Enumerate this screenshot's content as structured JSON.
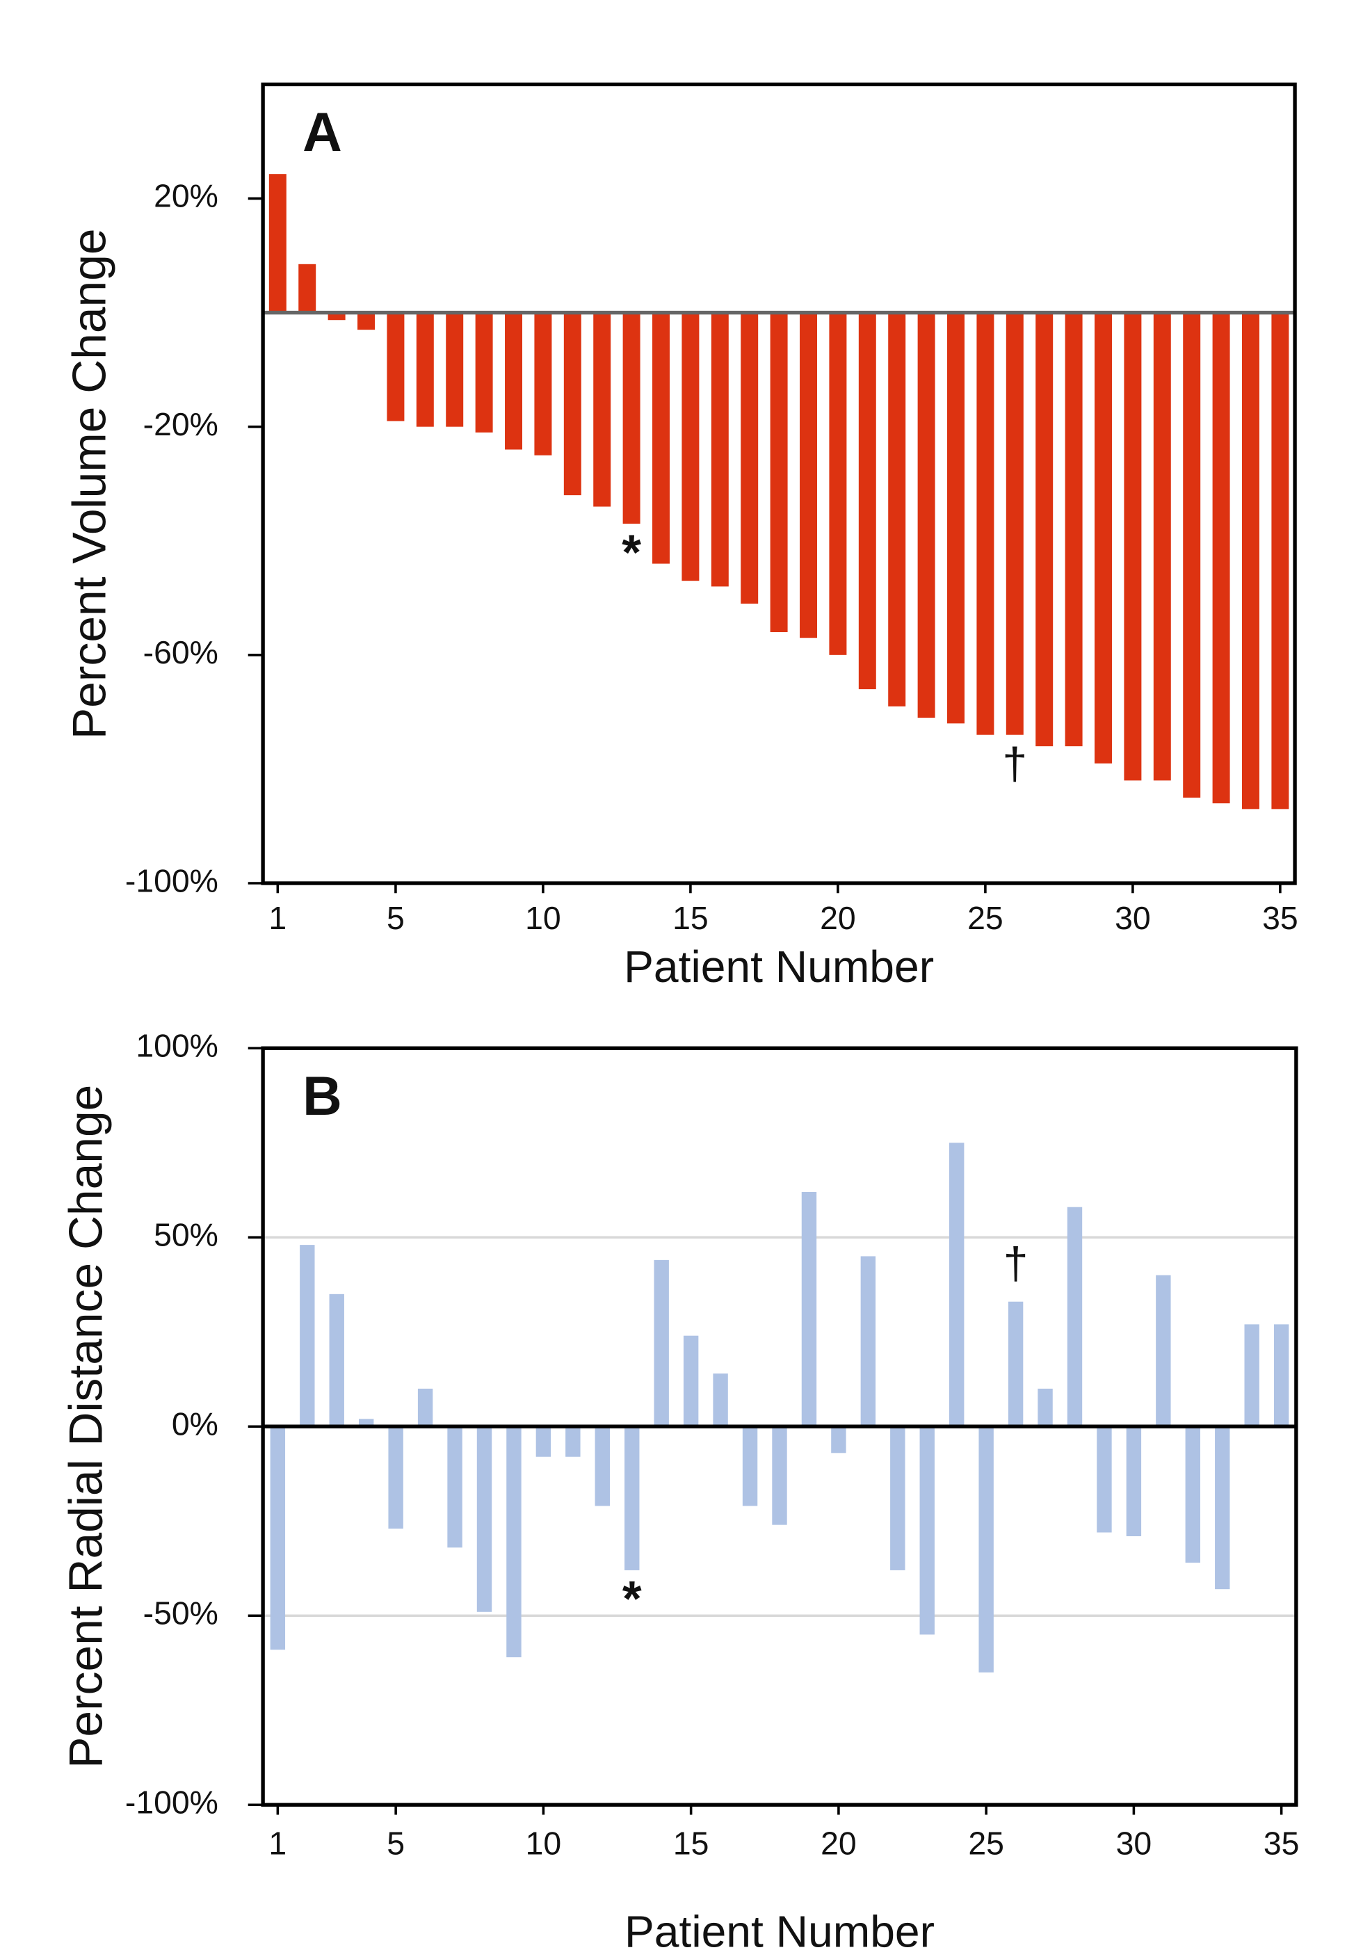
{
  "chart_data": [
    {
      "type": "bar",
      "panel_label": "A",
      "xlabel": "Patient Number",
      "ylabel": "Percent Volume Change",
      "x": [
        1,
        2,
        3,
        4,
        5,
        6,
        7,
        8,
        9,
        10,
        11,
        12,
        13,
        14,
        15,
        16,
        17,
        18,
        19,
        20,
        21,
        22,
        23,
        24,
        25,
        26,
        27,
        28,
        29,
        30,
        31,
        32,
        33,
        34,
        35
      ],
      "values": [
        24.3,
        8.5,
        -1.3,
        -3,
        -19,
        -20,
        -20,
        -21,
        -24,
        -25,
        -32,
        -34,
        -37,
        -44,
        -47,
        -48,
        -51,
        -56,
        -57,
        -60,
        -66,
        -69,
        -71,
        -72,
        -74,
        -74,
        -76,
        -76,
        -79,
        -82,
        -82,
        -85,
        -86,
        -87,
        -87
      ],
      "color": "#dd3311",
      "xlim": [
        0.5,
        35.5
      ],
      "ylim": [
        -100,
        40
      ],
      "xticks": [
        1,
        5,
        10,
        15,
        20,
        25,
        30,
        35
      ],
      "yticks": [
        {
          "value": 20,
          "label": "20%"
        },
        {
          "value": -20,
          "label": "-20%"
        },
        {
          "value": -60,
          "label": "-60%"
        },
        {
          "value": -100,
          "label": "-100%"
        }
      ],
      "grid": false,
      "annotations": [
        {
          "text": "*",
          "x": 13
        },
        {
          "text": "†",
          "x": 26
        }
      ]
    },
    {
      "type": "bar",
      "panel_label": "B",
      "xlabel": "Patient Number",
      "ylabel": "Percent Radial Distance Change",
      "x": [
        1,
        2,
        3,
        4,
        5,
        6,
        7,
        8,
        9,
        10,
        11,
        12,
        13,
        14,
        15,
        16,
        17,
        18,
        19,
        20,
        21,
        22,
        23,
        24,
        25,
        26,
        27,
        28,
        29,
        30,
        31,
        32,
        33,
        34,
        35
      ],
      "values": [
        -59,
        48,
        35,
        2,
        -27,
        10,
        -32,
        -49,
        -61,
        -8,
        -8,
        -21,
        -38,
        44,
        24,
        14,
        -21,
        -26,
        62,
        -7,
        45,
        -38,
        -55,
        75,
        -65,
        33,
        10,
        58,
        -28,
        -29,
        40,
        -36,
        -43,
        27,
        27
      ],
      "color": "#aec2e4",
      "xlim": [
        0.5,
        35.5
      ],
      "ylim": [
        -100,
        100
      ],
      "xticks": [
        1,
        5,
        10,
        15,
        20,
        25,
        30,
        35
      ],
      "yticks": [
        {
          "value": 100,
          "label": "100%"
        },
        {
          "value": 50,
          "label": "50%"
        },
        {
          "value": 0,
          "label": "0%"
        },
        {
          "value": -50,
          "label": "-50%"
        },
        {
          "value": -100,
          "label": "-100%"
        }
      ],
      "grid": true,
      "annotations": [
        {
          "text": "*",
          "x": 13
        },
        {
          "text": "†",
          "x": 26
        }
      ]
    }
  ]
}
